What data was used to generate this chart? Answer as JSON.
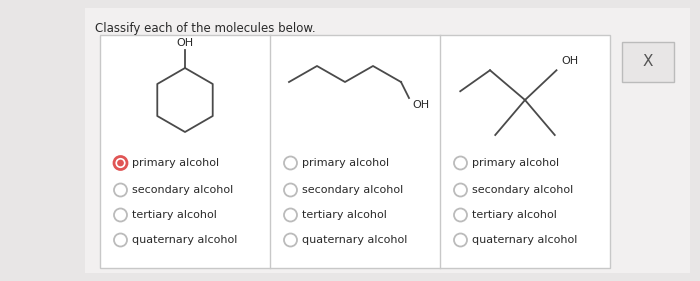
{
  "title": "Classify each of the molecules below.",
  "outer_bg": "#e8e6e6",
  "panel_bg": "#f2f0f0",
  "box_bg": "#ffffff",
  "border_color": "#c8c8c8",
  "text_color": "#2a2a2a",
  "line_color": "#4a4a4a",
  "selected_color": "#e05555",
  "unselected_color": "#bbbbbb",
  "options": [
    "primary alcohol",
    "secondary alcohol",
    "tertiary alcohol",
    "quaternary alcohol"
  ],
  "col1_selected": 0,
  "col2_selected": -1,
  "col3_selected": -1,
  "figsize": [
    7.0,
    2.81
  ],
  "dpi": 100
}
